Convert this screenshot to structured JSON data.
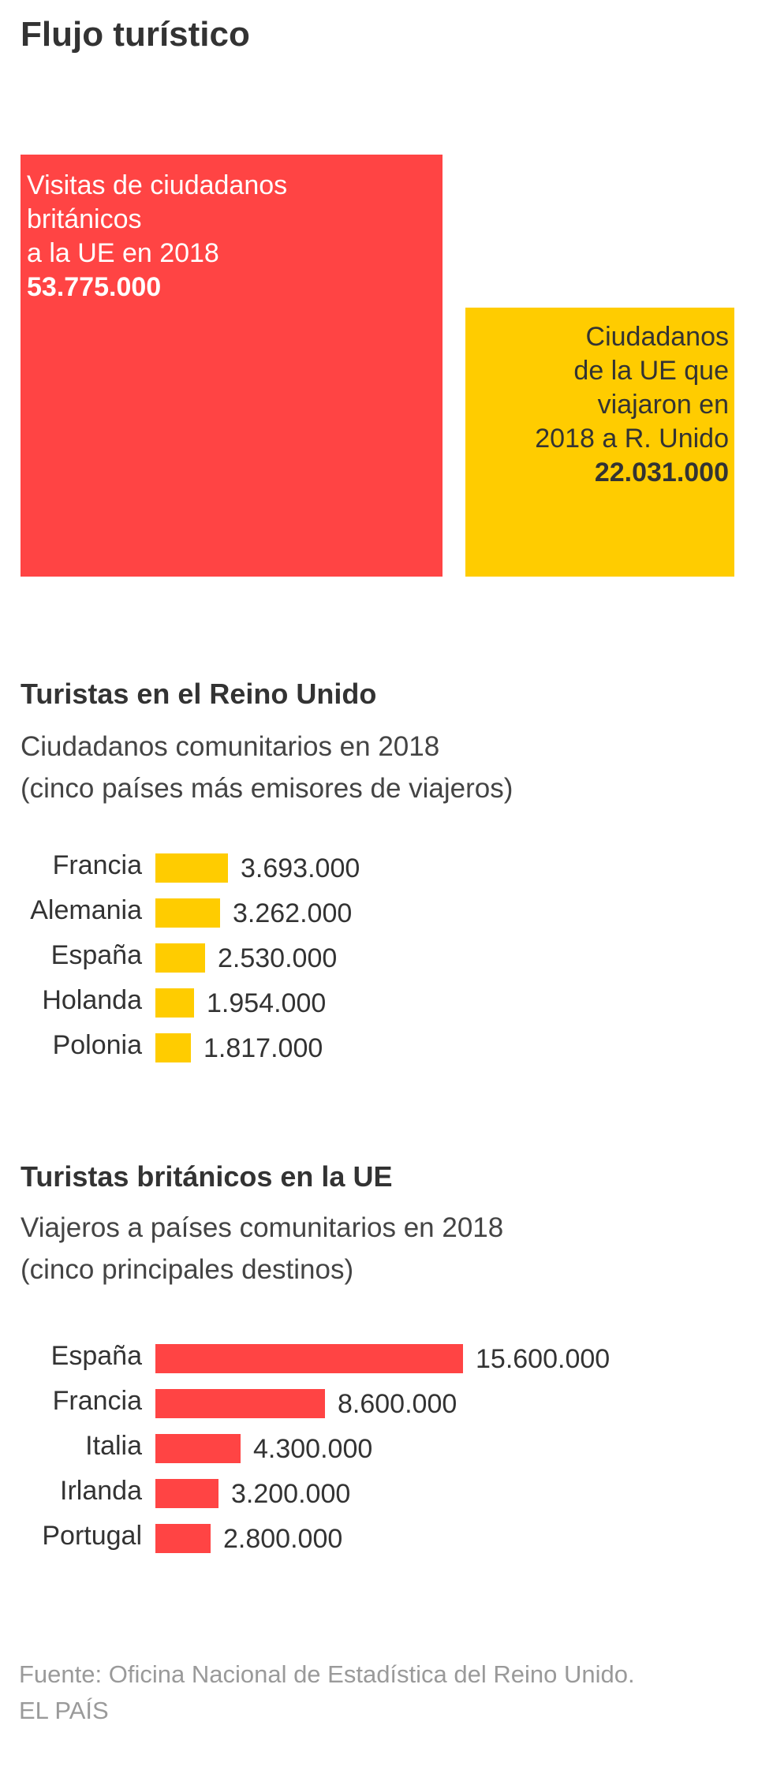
{
  "title": "Flujo turístico",
  "colors": {
    "red": "#ff4444",
    "yellow": "#ffcc00",
    "text": "#333333",
    "muted": "#9a9a9a"
  },
  "chart_data": [
    {
      "type": "area",
      "title": "Flujo turístico",
      "categories": [
        "Visitas de ciudadanos británicos a la UE en 2018",
        "Ciudadanos de la UE que viajaron en 2018 a R. Unido"
      ],
      "values": [
        53775000,
        22031000
      ],
      "items": [
        {
          "label": "Visitas de ciudadanos\nbritánicos\na la UE en 2018",
          "value": 53775000,
          "value_label": "53.775.000",
          "color": "#ff4444"
        },
        {
          "label": "Ciudadanos\nde la UE que\nviajaron en\n2018 a R. Unido",
          "value": 22031000,
          "value_label": "22.031.000",
          "color": "#ffcc00"
        }
      ]
    },
    {
      "type": "bar",
      "title": "Turistas en el Reino Unido",
      "subtitle": "Ciudadanos comunitarios en 2018\n(cinco países más emisores de viajeros)",
      "categories": [
        "Francia",
        "Alemania",
        "España",
        "Holanda",
        "Polonia"
      ],
      "values": [
        3693000,
        3262000,
        2530000,
        1954000,
        1817000
      ],
      "value_labels": [
        "3.693.000",
        "3.262.000",
        "2.530.000",
        "1.954.000",
        "1.817.000"
      ],
      "color": "#ffcc00",
      "xlim": [
        0,
        15600000
      ],
      "xlabel": "",
      "ylabel": ""
    },
    {
      "type": "bar",
      "title": "Turistas británicos en la UE",
      "subtitle": "Viajeros a países comunitarios en 2018\n(cinco principales destinos)",
      "categories": [
        "España",
        "Francia",
        "Italia",
        "Irlanda",
        "Portugal"
      ],
      "values": [
        15600000,
        8600000,
        4300000,
        3200000,
        2800000
      ],
      "value_labels": [
        "15.600.000",
        "8.600.000",
        "4.300.000",
        "3.200.000",
        "2.800.000"
      ],
      "color": "#ff4444",
      "xlim": [
        0,
        15600000
      ],
      "xlabel": "",
      "ylabel": ""
    }
  ],
  "footer": {
    "source": "Fuente: Oficina Nacional de Estadística del Reino Unido.",
    "brand": "EL PAÍS"
  }
}
